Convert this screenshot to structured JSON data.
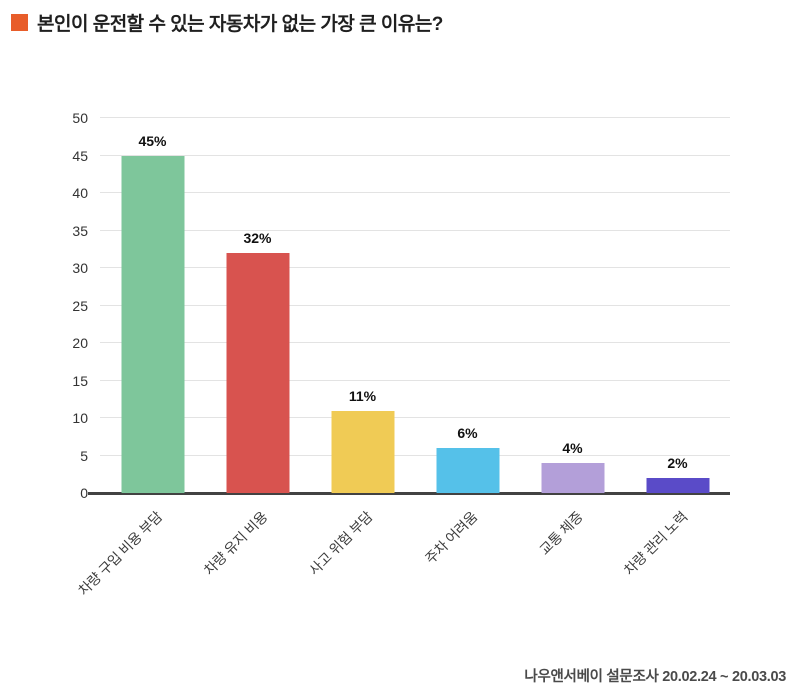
{
  "title": "본인이 운전할 수 있는 자동차가 없는 가장 큰 이유는?",
  "accent_color": "#e85d2a",
  "footer": {
    "source": "나우앤서베이 설문조사 20.02.24 ~ 20.03.03"
  },
  "chart_data": {
    "type": "bar",
    "title": "본인이 운전할 수 있는 자동차가 없는 가장 큰 이유는?",
    "categories": [
      "차량 구입 비용 부담",
      "차량 유지 비용",
      "사고 위험 부담",
      "주차 어려움",
      "교통 체증",
      "차량 관리 노력"
    ],
    "values": [
      45,
      32,
      11,
      6,
      4,
      2
    ],
    "value_labels": [
      "45%",
      "32%",
      "11%",
      "6%",
      "4%",
      "2%"
    ],
    "bar_colors": [
      "#7ec69b",
      "#d8534f",
      "#f0cb55",
      "#55c1e9",
      "#b39fd9",
      "#5a4bc8"
    ],
    "xlabel": "",
    "ylabel": "",
    "ylim": [
      0,
      50
    ],
    "ytick_step": 5,
    "yticks": [
      0,
      5,
      10,
      15,
      20,
      25,
      30,
      35,
      40,
      45,
      50
    ],
    "grid": true,
    "legend": false,
    "annotation_source": "나우앤서베이 설문조사 20.02.24 ~ 20.03.03"
  }
}
